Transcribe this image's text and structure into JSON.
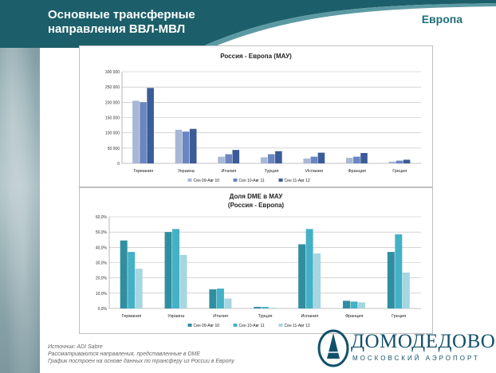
{
  "slide": {
    "title": "Основные трансферные\nнаправления ВВЛ-МВЛ",
    "region": "Европа"
  },
  "chart_data": [
    {
      "type": "bar",
      "title": "Россия - Европа (МАУ)",
      "categories": [
        "Германия",
        "Украина",
        "Италия",
        "Турция",
        "Испания",
        "Франция",
        "Греция"
      ],
      "series": [
        {
          "name": "Сен 09-Авг 10",
          "color": "#a9b7d6",
          "values": [
            205000,
            110000,
            22000,
            20000,
            16000,
            18000,
            6000
          ]
        },
        {
          "name": "Сен 10-Авг 11",
          "color": "#6a86c0",
          "values": [
            200000,
            104000,
            30000,
            30000,
            22000,
            22000,
            9000
          ]
        },
        {
          "name": "Сен 11-Авг 12",
          "color": "#3b5c99",
          "values": [
            247000,
            113000,
            44000,
            40000,
            35000,
            34000,
            12000
          ]
        }
      ],
      "yticks": [
        "0",
        "50 000",
        "100 000",
        "150 000",
        "200 000",
        "250 000",
        "300 000"
      ],
      "ylim": [
        0,
        300000
      ],
      "grid": true,
      "legend": "bottom"
    },
    {
      "type": "bar",
      "title": "Доля DME в МАУ",
      "subtitle": "(Россия - Европа)",
      "categories": [
        "Германия",
        "Украина",
        "Италия",
        "Турция",
        "Испания",
        "Франция",
        "Греция"
      ],
      "series": [
        {
          "name": "Сен 09-Авг 10",
          "color": "#2f8fa0",
          "values": [
            44.5,
            50.0,
            12.5,
            1.0,
            42.0,
            5.0,
            37.0
          ]
        },
        {
          "name": "Сен 10-Авг 11",
          "color": "#44b1c6",
          "values": [
            37.0,
            52.0,
            13.0,
            1.0,
            52.0,
            4.5,
            48.5
          ]
        },
        {
          "name": "Сен 11-Авг 12",
          "color": "#a6d6e1",
          "values": [
            26.0,
            35.0,
            6.5,
            0.5,
            36.0,
            4.0,
            23.5
          ]
        }
      ],
      "yticks": [
        "0,0%",
        "10,0%",
        "20,0%",
        "30,0%",
        "40,0%",
        "50,0%",
        "60,0%"
      ],
      "ylim": [
        0,
        60
      ],
      "grid": true,
      "legend": "bottom"
    }
  ],
  "notes": {
    "line1": "Источник: ADI Sabre",
    "line2": "Рассматриваются направления, представленные в DME",
    "line3": "График построен на основе данных по трансферу из России в Европу"
  },
  "logo": {
    "name": "ДОМОДЕДОВО",
    "subtitle": "МОСКОВСКИЙ АЭРОПОРТ"
  }
}
